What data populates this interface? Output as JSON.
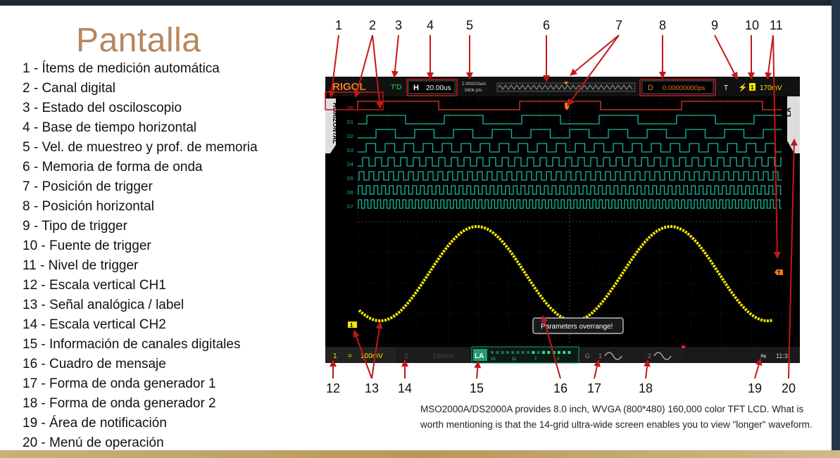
{
  "title": "Pantalla",
  "legend_items": [
    "1 - Ítems de medición automática",
    "2 - Canal digital",
    "3 - Estado del osciloscopio",
    "4 - Base de tiempo horizontal",
    "5 - Vel. de muestreo y prof. de memoria",
    "6 - Memoria de forma de onda",
    "7 - Posición de trigger",
    "8 - Posición horizontal",
    "9 - Tipo de trigger",
    "10 - Fuente de trigger",
    "11 - Nivel de trigger",
    "12 - Escala vertical CH1",
    "13 - Señal analógica / label",
    "14 - Escala vertical CH2",
    "15 - Información de canales digitales",
    "16 - Cuadro de mensaje",
    "17 - Forma de onda generador 1",
    "18 - Forma de onda generador 2",
    "19 - Área de notificación",
    "20 - Menú de operación"
  ],
  "caption": "MSO2000A/DS2000A provides 8.0 inch, WVGA (800*480) 160,000 color TFT LCD. What is worth mentioning is that the 14-grid ultra-wide screen enables you to view \"longer\" waveform.",
  "top_numbers": [
    "1",
    "2",
    "3",
    "4",
    "5",
    "6",
    "7",
    "8",
    "9",
    "10",
    "11"
  ],
  "bottom_numbers": [
    "12",
    "13",
    "14",
    "15",
    "16",
    "17",
    "18",
    "19",
    "20"
  ],
  "scope": {
    "logo": "RIGOL",
    "status": "T'D",
    "timebase_prefix": "H",
    "timebase": "20.00us",
    "sample_rate": "2.000GSa/s",
    "memory_depth": "560k pts",
    "hpos_prefix": "D",
    "hpos": "0.00000000ps",
    "trigger_label": "T",
    "trigger_source": "1",
    "trigger_level": "170mV",
    "left_tab": "HORIZONTAL",
    "right_tab": "LA",
    "digital_labels": [
      "D0",
      "D1",
      "D2",
      "D3",
      "D4",
      "D5",
      "D6",
      "D7"
    ],
    "message": "Parameters overrange!",
    "ch1_num": "1",
    "ch1_scale": "100mV",
    "ch2_num": "2",
    "ch2_scale": "100mV",
    "la_label": "LA",
    "la_channels": [
      "15",
      "11",
      "7",
      "3"
    ],
    "gen_label": "G",
    "gen1_num": "1",
    "gen2_num": "2",
    "time_readout": "11:3",
    "ch1_marker": "1",
    "trig_marker": "T"
  },
  "colors": {
    "title": "#b8865c",
    "annotation_red": "#c41717",
    "digital_green": "#19b8a0",
    "analog_yellow": "#f2e800",
    "scope_bg": "#000000"
  }
}
